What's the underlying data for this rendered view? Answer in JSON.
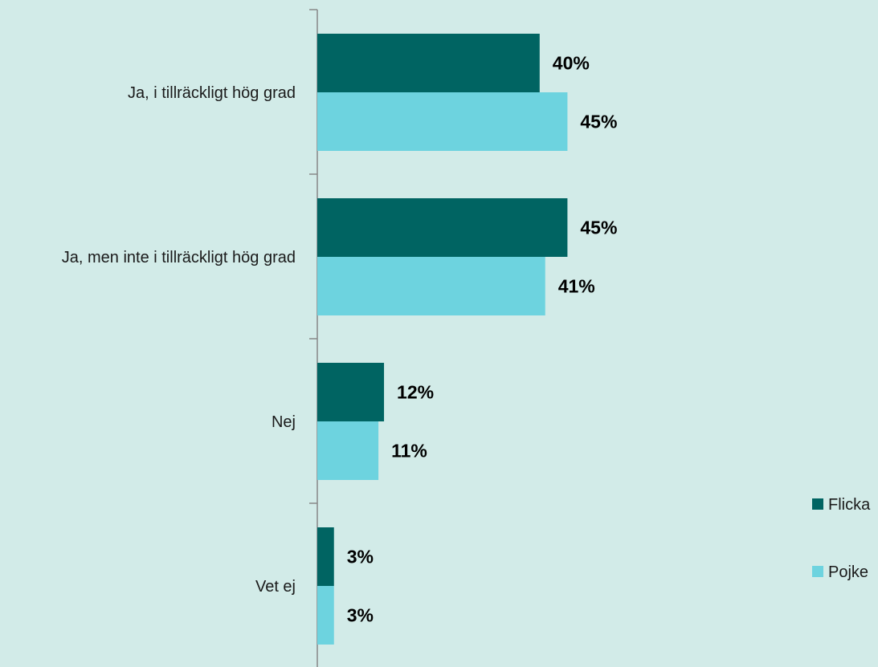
{
  "chart_data": {
    "type": "bar",
    "orientation": "horizontal",
    "categories": [
      "Ja, i tillräckligt hög grad",
      "Ja, men inte i tillräckligt hög grad",
      "Nej",
      "Vet ej"
    ],
    "series": [
      {
        "name": "Flicka",
        "color": "#006462",
        "values": [
          40,
          45,
          12,
          3
        ],
        "labels": [
          "40%",
          "45%",
          "12%",
          "3%"
        ]
      },
      {
        "name": "Pojke",
        "color": "#6dd3df",
        "values": [
          45,
          41,
          11,
          3
        ],
        "labels": [
          "45%",
          "41%",
          "11%",
          "3%"
        ]
      }
    ],
    "value_unit": "%",
    "xlim": [
      0,
      100
    ],
    "title": "",
    "xlabel": "",
    "ylabel": "",
    "grid": false,
    "legend_position": "right"
  }
}
